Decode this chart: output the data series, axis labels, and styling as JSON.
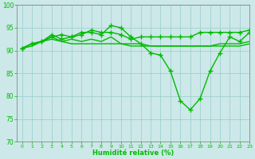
{
  "title": "",
  "xlabel": "Humidité relative (%)",
  "ylabel": "",
  "xlim": [
    -0.5,
    23
  ],
  "ylim": [
    70,
    100
  ],
  "yticks": [
    70,
    75,
    80,
    85,
    90,
    95,
    100
  ],
  "xticks": [
    0,
    1,
    2,
    3,
    4,
    5,
    6,
    7,
    8,
    9,
    10,
    11,
    12,
    13,
    14,
    15,
    16,
    17,
    18,
    19,
    20,
    21,
    22,
    23
  ],
  "bg_color": "#cce8e8",
  "grid_color": "#99cccc",
  "line_color": "#00bb00",
  "series": [
    [
      90.5,
      91.5,
      92.0,
      93.5,
      92.5,
      93.0,
      94.0,
      94.0,
      93.5,
      95.5,
      95.0,
      93.0,
      91.5,
      89.5,
      89.0,
      85.5,
      79.0,
      77.0,
      79.5,
      85.5,
      89.5,
      93.0,
      92.0,
      94.0
    ],
    [
      90.5,
      91.5,
      92.0,
      93.0,
      93.5,
      93.0,
      93.5,
      94.5,
      94.0,
      94.0,
      93.5,
      92.5,
      93.0,
      93.0,
      93.0,
      93.0,
      93.0,
      93.0,
      94.0,
      94.0,
      94.0,
      94.0,
      94.0,
      94.5
    ],
    [
      90.5,
      91.5,
      92.0,
      93.0,
      92.0,
      92.5,
      92.0,
      92.5,
      92.0,
      93.0,
      91.5,
      91.5,
      91.5,
      91.0,
      91.0,
      91.0,
      91.0,
      91.0,
      91.0,
      91.0,
      91.5,
      91.5,
      91.5,
      92.0
    ],
    [
      90.5,
      91.0,
      92.0,
      92.5,
      92.0,
      91.5,
      91.5,
      91.5,
      91.5,
      91.5,
      91.5,
      91.0,
      91.0,
      91.0,
      91.0,
      91.0,
      91.0,
      91.0,
      91.0,
      91.0,
      91.0,
      91.0,
      91.0,
      91.5
    ]
  ],
  "marker_size": 2.5,
  "linewidth": 1.0
}
